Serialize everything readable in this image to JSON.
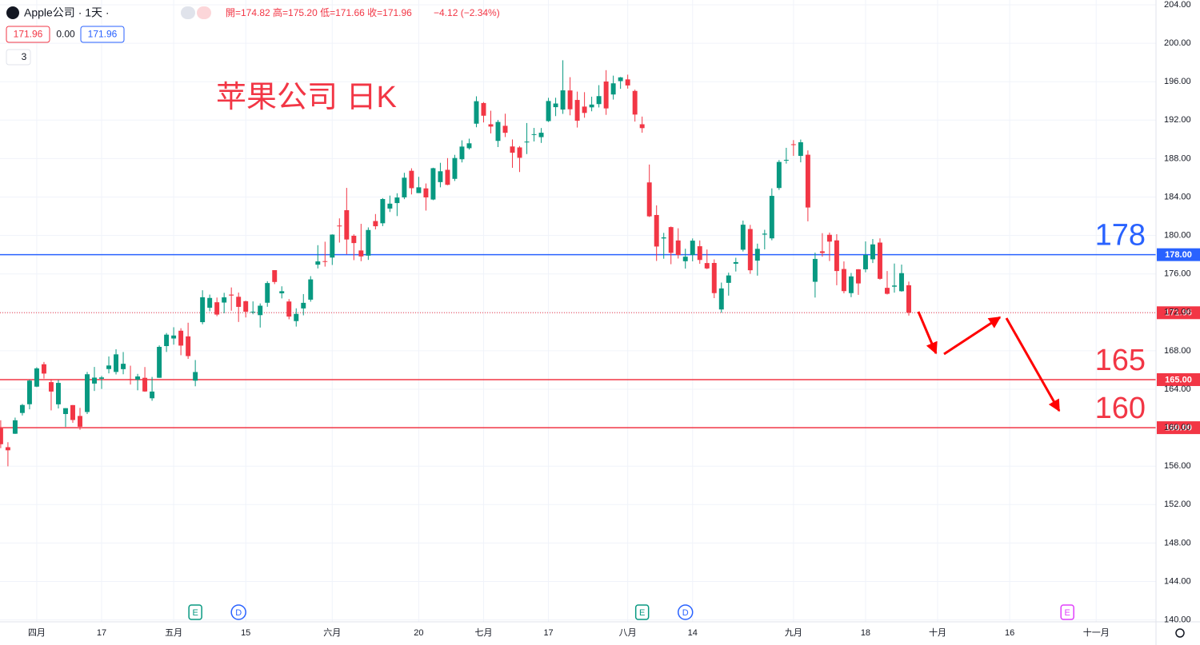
{
  "header": {
    "symbol": "Apple公司 · 1天 ·",
    "ohlc": "開=174.82 高=175.20 低=171.66 收=171.96",
    "change": "−4.12 (−2.34%)",
    "boxes": [
      "171.96",
      "0.00",
      "171.96"
    ],
    "indicators": "3"
  },
  "chart_data": {
    "type": "candlestick",
    "title": "苹果公司 日K",
    "categories": [
      null,
      null,
      null,
      null,
      null,
      null,
      null,
      null,
      null,
      null,
      null,
      null,
      null,
      null,
      null,
      null,
      null,
      null,
      null,
      null,
      null,
      null,
      null,
      null,
      null,
      null,
      null,
      null,
      null,
      null,
      null,
      null,
      null,
      null,
      null,
      null,
      null,
      null,
      null,
      null,
      null,
      null,
      null,
      null,
      null,
      null,
      null,
      null,
      null,
      null,
      null,
      null,
      null,
      null,
      null,
      null,
      null,
      null,
      null,
      null,
      null,
      null,
      null,
      null,
      null,
      null,
      null,
      null,
      null,
      null,
      null,
      null,
      null,
      null,
      null,
      null,
      null,
      null,
      null,
      null,
      null,
      null,
      null,
      null,
      null,
      null,
      null,
      null,
      null,
      null,
      null,
      null,
      null,
      null,
      null,
      null,
      null,
      null,
      null,
      null,
      null,
      null,
      null,
      null,
      null,
      null,
      null,
      null,
      null,
      null,
      null,
      null,
      null,
      null,
      null,
      null,
      null,
      null,
      null,
      null,
      null,
      null,
      null,
      null,
      null,
      null,
      null
    ],
    "open": [
      159.94,
      157.97,
      159.37,
      161.53,
      162.44,
      164.27,
      166.6,
      164.74,
      162.43,
      161.42,
      162.35,
      161.22,
      161.63,
      164.59,
      165.09,
      166.1,
      165.8,
      166.09,
      165.05,
      165,
      165.19,
      163.06,
      165.19,
      168.49,
      169.28,
      170.09,
      169.5,
      164.89,
      170.98,
      172.48,
      173.05,
      173.02,
      173.85,
      173.62,
      173.16,
      171.99,
      171.71,
      173,
      176.39,
      173.98,
      173.13,
      171.09,
      172.41,
      173.32,
      176.96,
      177.33,
      177.7,
      181.03,
      182.63,
      179.97,
      178.44,
      177.9,
      181.5,
      181.27,
      182.8,
      183.37,
      183.96,
      186.73,
      184.41,
      184.9,
      183.74,
      185.55,
      186.83,
      185.89,
      187.93,
      189.08,
      191.63,
      193.78,
      191.57,
      189.84,
      191.41,
      189.26,
      189.16,
      189.68,
      190.5,
      190.23,
      191.9,
      193.35,
      193.1,
      195.09,
      194.1,
      193.41,
      193.33,
      193.67,
      196.02,
      194.67,
      196.06,
      196.24,
      195.04,
      191.57,
      185.52,
      182.13,
      179.69,
      180.87,
      179.48,
      177.32,
      177.97,
      178.88,
      177.13,
      177.14,
      172.3,
      175.07,
      177.06,
      178.52,
      180.67,
      177.38,
      180.09,
      179.7,
      184.94,
      187.84,
      189.49,
      188.28,
      188.4,
      175.18,
      178.35,
      180.07,
      179.49,
      176.51,
      174,
      176.48,
      176.48,
      177.52,
      179.26,
      174.55,
      174.67,
      174.2,
      174.82
    ],
    "high": [
      160.77,
      158.49,
      161.05,
      162.47,
      165,
      166.29,
      166.84,
      165.05,
      164.96,
      162.03,
      162.36,
      162.06,
      165.8,
      166.32,
      165.39,
      167.41,
      168.16,
      167.87,
      166.45,
      165.6,
      166.31,
      165.28,
      168.56,
      169.85,
      170.45,
      170.35,
      170.92,
      167.04,
      174.3,
      173.85,
      173.54,
      174.03,
      174.59,
      174.06,
      173.21,
      173.14,
      172.93,
      175.24,
      176.39,
      174.71,
      173.38,
      172.42,
      173.9,
      175.77,
      178.99,
      179.35,
      180.12,
      181.78,
      184.95,
      180.12,
      181.21,
      180.84,
      182.23,
      183.89,
      184.15,
      184.39,
      186.52,
      186.99,
      186.1,
      185.41,
      187.05,
      187.56,
      188.05,
      188.39,
      189.9,
      190.07,
      194.48,
      193.88,
      192.98,
      192.02,
      192.67,
      189.99,
      189.3,
      191.7,
      191.19,
      191.18,
      194.32,
      194.33,
      198.23,
      196.47,
      194.97,
      194.91,
      194.44,
      195.64,
      197.2,
      196.63,
      196.49,
      196.73,
      195.18,
      192.37,
      187.38,
      183.13,
      180.27,
      180.93,
      180.75,
      178.62,
      179.69,
      179.48,
      178.54,
      177.51,
      175.1,
      176.13,
      177.68,
      181.55,
      181.1,
      179.15,
      180.59,
      184.9,
      187.85,
      189.12,
      189.92,
      189.98,
      188.85,
      178.21,
      180.24,
      180.3,
      180.13,
      177.3,
      176.1,
      176.5,
      179.38,
      179.63,
      179.7,
      176.3,
      177.08,
      176.97,
      175.2
    ],
    "low": [
      157.87,
      155.98,
      159.35,
      161.27,
      161.91,
      164.22,
      165.11,
      161.8,
      162,
      160.08,
      160.51,
      159.78,
      161.42,
      163.82,
      164.03,
      165.65,
      165.54,
      165.56,
      164.49,
      163.89,
      163.73,
      162.8,
      165.19,
      167.88,
      168.64,
      167.54,
      167.16,
      164.31,
      170.76,
      172.11,
      171.6,
      171.9,
      172.17,
      171,
      171.47,
      171.8,
      170.42,
      172.58,
      174.94,
      173.45,
      171.28,
      170.52,
      171.69,
      173.11,
      176.57,
      176.76,
      176.93,
      179.26,
      178.04,
      177.43,
      177.32,
      177.46,
      180.63,
      180.97,
      182.44,
      182.02,
      183.78,
      184.27,
      184.41,
      182.59,
      183.67,
      185.01,
      185.23,
      185.67,
      187.6,
      188.94,
      191.26,
      191.76,
      190.62,
      189.2,
      190.24,
      187.04,
      186.6,
      188.47,
      189.78,
      189.63,
      191.81,
      192.42,
      192.65,
      192.5,
      191.23,
      192.25,
      192.92,
      193.32,
      192.55,
      194.14,
      195.26,
      195.28,
      191.85,
      190.69,
      181.92,
      177.35,
      177.58,
      177.01,
      177.6,
      176.55,
      177.31,
      177.05,
      176.5,
      173.48,
      171.96,
      173.74,
      176.25,
      178.33,
      176.01,
      175.82,
      178.55,
      179.5,
      184.74,
      187.48,
      188.28,
      187.61,
      181.47,
      173.54,
      177.79,
      177.34,
      174.82,
      173.98,
      173.58,
      173.82,
      176.17,
      177.13,
      175.4,
      173.86,
      174.05,
      174.15,
      171.66
    ],
    "close": [
      158.28,
      157.65,
      160.77,
      162.36,
      164.9,
      166.17,
      165.63,
      163.76,
      164.66,
      162.03,
      160.8,
      160.1,
      165.56,
      165.21,
      165.23,
      166.47,
      167.63,
      166.65,
      165.02,
      165.33,
      163.77,
      163.76,
      168.41,
      169.68,
      169.59,
      168.54,
      167.45,
      165.79,
      173.57,
      173.5,
      171.77,
      173.56,
      173.75,
      172.57,
      172.07,
      172.07,
      172.69,
      175.05,
      175.16,
      174.2,
      171.56,
      171.84,
      172.99,
      175.43,
      177.3,
      177.25,
      180.09,
      180.95,
      179.58,
      179.21,
      177.82,
      180.57,
      180.96,
      183.79,
      183.31,
      183.95,
      186.01,
      184.92,
      185.01,
      183.96,
      187,
      186.68,
      185.27,
      188.06,
      189.25,
      189.59,
      193.97,
      192.46,
      191.33,
      191.81,
      190.68,
      188.61,
      188.08,
      189.77,
      190.54,
      190.69,
      193.99,
      193.73,
      195.1,
      193.13,
      191.94,
      192.75,
      193.62,
      194.5,
      193.22,
      195.83,
      196.45,
      195.61,
      192.58,
      191.17,
      181.99,
      178.85,
      179.8,
      178.19,
      177.97,
      177.79,
      179.46,
      177.45,
      176.57,
      174,
      174.49,
      175.84,
      177.23,
      181.12,
      176.38,
      178.61,
      180.19,
      184.12,
      187.65,
      187.87,
      189.46,
      189.7,
      182.91,
      177.56,
      178.18,
      179.36,
      176.3,
      174.21,
      175.74,
      175.01,
      177.97,
      179.07,
      175.49,
      173.93,
      174.79,
      176.08,
      171.96
    ],
    "up_color": "#089981",
    "down_color": "#f23645",
    "xlim": [
      -0.1,
      160.3
    ],
    "xticks": [
      {
        "value": 5,
        "label": "四月"
      },
      {
        "value": 14,
        "label": "17"
      },
      {
        "value": 24,
        "label": "五月"
      },
      {
        "value": 34,
        "label": "15"
      },
      {
        "value": 46,
        "label": "六月"
      },
      {
        "value": 58,
        "label": "20"
      },
      {
        "value": 67,
        "label": "七月"
      },
      {
        "value": 76,
        "label": "17"
      },
      {
        "value": 87,
        "label": "八月"
      },
      {
        "value": 96,
        "label": "14"
      },
      {
        "value": 110,
        "label": "九月"
      },
      {
        "value": 120,
        "label": "18"
      },
      {
        "value": 130,
        "label": "十月"
      },
      {
        "value": 140,
        "label": "16"
      },
      {
        "value": 152,
        "label": "十一月"
      }
    ],
    "ylim": [
      139.8,
      204.5
    ],
    "yticks": [
      {
        "value": 140,
        "label": "140.00"
      },
      {
        "value": 144,
        "label": "144.00"
      },
      {
        "value": 148,
        "label": "148.00"
      },
      {
        "value": 152,
        "label": "152.00"
      },
      {
        "value": 156,
        "label": "156.00"
      },
      {
        "value": 160,
        "label": "160.00"
      },
      {
        "value": 164,
        "label": "164.00"
      },
      {
        "value": 168,
        "label": "168.00"
      },
      {
        "value": 172,
        "label": "172.00"
      },
      {
        "value": 176,
        "label": "176.00"
      },
      {
        "value": 180,
        "label": "180.00"
      },
      {
        "value": 184,
        "label": "184.00"
      },
      {
        "value": 188,
        "label": "188.00"
      },
      {
        "value": 192,
        "label": "192.00"
      },
      {
        "value": 196,
        "label": "196.00"
      },
      {
        "value": 200,
        "label": "200.00"
      },
      {
        "value": 204,
        "label": "204.00"
      }
    ],
    "grid": true,
    "hlines": [
      {
        "value": 178,
        "label": "178.00",
        "color": "#2962ff",
        "annotation": "178"
      },
      {
        "value": 165,
        "label": "165.00",
        "color": "#f23645",
        "annotation": "165"
      },
      {
        "value": 160,
        "label": "160.00",
        "color": "#f23645",
        "annotation": "160"
      }
    ],
    "last_price": {
      "value": 171.96,
      "color": "#f23645"
    },
    "events": [
      {
        "label": "E",
        "x": 27,
        "color": "#089981"
      },
      {
        "label": "D",
        "x": 33,
        "color": "#2962ff"
      },
      {
        "label": "E",
        "x": 89,
        "color": "#089981"
      },
      {
        "label": "D",
        "x": 95,
        "color": "#2962ff"
      },
      {
        "label": "E",
        "x": 148,
        "color": "#e040fb"
      }
    ]
  }
}
